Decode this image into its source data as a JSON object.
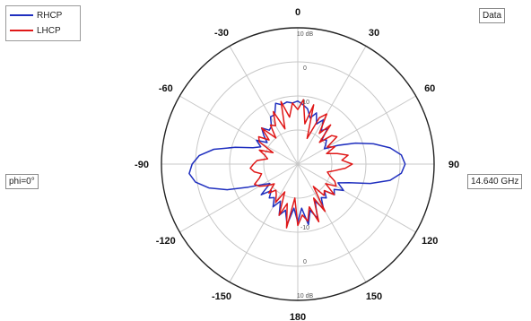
{
  "legend": {
    "items": [
      {
        "label": "RHCP",
        "color": "#1f2fbf"
      },
      {
        "label": "LHCP",
        "color": "#e01818"
      }
    ]
  },
  "cut_label": "phi=0°",
  "data_label": "Data",
  "frequency_label": "14.640 GHz",
  "chart_data": {
    "type": "polar",
    "angle_ticks": [
      "0",
      "30",
      "60",
      "90",
      "120",
      "150",
      "180",
      "-150",
      "-120",
      "-90",
      "-60",
      "-30"
    ],
    "angle_tick_values": [
      0,
      30,
      60,
      90,
      120,
      150,
      180,
      -150,
      -120,
      -90,
      -60,
      -30
    ],
    "radial_ticks": [
      "10 dB",
      "0",
      "-10"
    ],
    "radial_tick_values": [
      10,
      0,
      -10
    ],
    "radial_range_db": [
      -30,
      10
    ],
    "angle_direction": "clockwise",
    "zero_angle": "top",
    "series": [
      {
        "name": "RHCP",
        "color": "#1f2fbf",
        "theta": [
          0,
          5,
          10,
          15,
          20,
          25,
          30,
          35,
          40,
          45,
          50,
          55,
          60,
          65,
          70,
          75,
          80,
          85,
          90,
          95,
          100,
          105,
          110,
          115,
          120,
          125,
          130,
          135,
          140,
          145,
          150,
          155,
          160,
          165,
          170,
          175,
          180,
          185,
          190,
          195,
          200,
          205,
          210,
          215,
          220,
          225,
          230,
          235,
          240,
          245,
          250,
          255,
          260,
          265,
          270,
          275,
          280,
          285,
          290,
          295,
          300,
          305,
          310,
          315,
          320,
          325,
          330,
          335,
          340,
          345,
          350,
          355
        ],
        "gain_db": [
          -11.5,
          -12.5,
          -13.5,
          -16,
          -14,
          -17,
          -15,
          -18,
          -16.5,
          -20,
          -19,
          -20,
          -21,
          -17,
          -12,
          -7,
          -2.5,
          0.5,
          1.5,
          0.5,
          -2.5,
          -8,
          -14,
          -17,
          -14.5,
          -17,
          -16,
          -19,
          -17,
          -18,
          -15,
          -18,
          -13,
          -16,
          -12,
          -17,
          -13,
          -17,
          -12,
          -16,
          -14,
          -18,
          -15.5,
          -18,
          -17,
          -19,
          -16,
          -20,
          -18,
          -14,
          -8,
          -3,
          0.5,
          2,
          1,
          -1,
          -5,
          -11,
          -16,
          -18,
          -16,
          -19,
          -17,
          -15,
          -17,
          -16.5,
          -14,
          -14,
          -11,
          -12,
          -11.5,
          -12
        ]
      },
      {
        "name": "LHCP",
        "color": "#e01818",
        "theta": [
          0,
          5,
          10,
          15,
          20,
          25,
          30,
          35,
          40,
          45,
          50,
          55,
          60,
          65,
          70,
          75,
          80,
          85,
          90,
          95,
          100,
          105,
          110,
          115,
          120,
          125,
          130,
          135,
          140,
          145,
          150,
          155,
          160,
          165,
          170,
          175,
          180,
          185,
          190,
          195,
          200,
          205,
          210,
          215,
          220,
          225,
          230,
          235,
          240,
          245,
          250,
          255,
          260,
          265,
          270,
          275,
          280,
          285,
          290,
          295,
          300,
          305,
          310,
          315,
          320,
          325,
          330,
          335,
          340,
          345,
          350,
          355
        ],
        "gain_db": [
          -14,
          -11,
          -18,
          -12,
          -22,
          -15,
          -13,
          -19,
          -15,
          -21,
          -17,
          -16,
          -20,
          -18,
          -21,
          -18,
          -15,
          -17,
          -14,
          -16,
          -19,
          -21,
          -20,
          -18,
          -17,
          -20,
          -16,
          -19,
          -18,
          -22,
          -14,
          -19,
          -12,
          -17,
          -13,
          -15,
          -12,
          -20,
          -11,
          -18,
          -14,
          -21,
          -17,
          -19,
          -20,
          -18,
          -21,
          -19,
          -17,
          -16,
          -18,
          -19,
          -17,
          -16,
          -17,
          -18,
          -21,
          -20,
          -18,
          -22,
          -17,
          -16,
          -19,
          -15,
          -20,
          -16,
          -17,
          -13,
          -19,
          -11,
          -16,
          -12
        ]
      }
    ]
  }
}
